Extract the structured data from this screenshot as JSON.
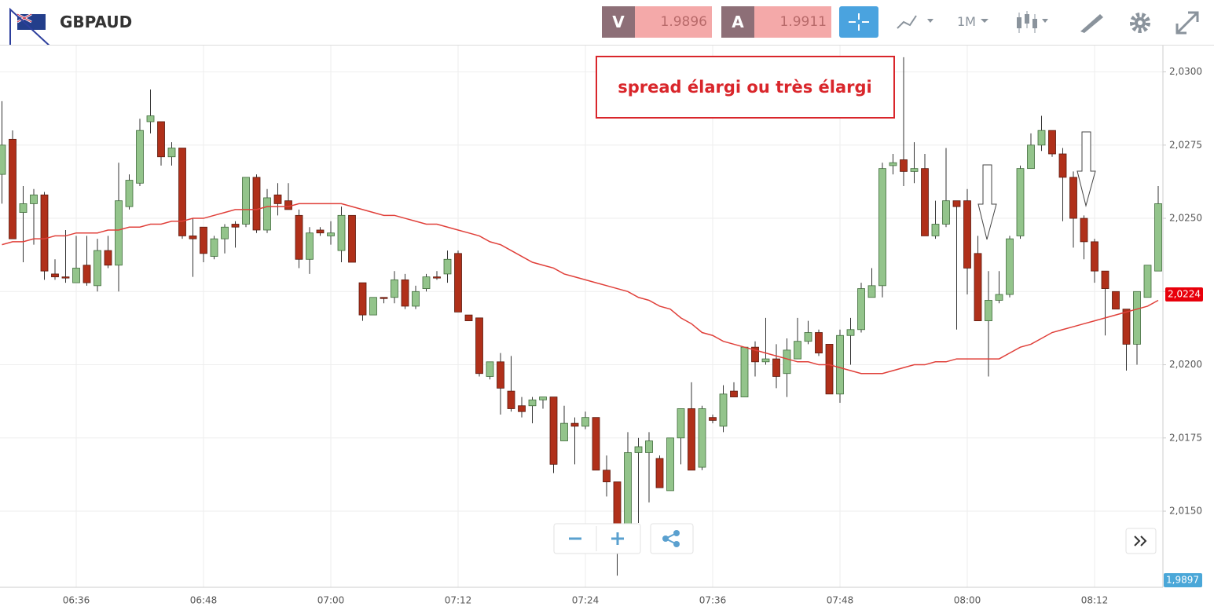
{
  "toolbar": {
    "symbol": "GBPAUD",
    "sell_label": "V",
    "sell_price": "1.9896",
    "buy_label": "A",
    "buy_price": "1.9911",
    "timeframe": "1M"
  },
  "chart_data": {
    "type": "candlestick",
    "annotation": "spread élargi ou très élargi",
    "categories": [
      null,
      null,
      null,
      null,
      null,
      null,
      null,
      "06:36",
      null,
      null,
      null,
      null,
      null,
      null,
      null,
      null,
      null,
      null,
      null,
      "06:48",
      null,
      null,
      null,
      null,
      null,
      null,
      null,
      null,
      null,
      null,
      null,
      "07:00",
      null,
      null,
      null,
      null,
      null,
      null,
      null,
      null,
      null,
      null,
      null,
      "07:12",
      null,
      null,
      null,
      null,
      null,
      null,
      null,
      null,
      null,
      null,
      null,
      "07:24",
      null,
      null,
      null,
      null,
      null,
      null,
      null,
      null,
      null,
      null,
      null,
      "07:36",
      null,
      null,
      null,
      null,
      null,
      null,
      null,
      null,
      null,
      null,
      null,
      "07:48",
      null,
      null,
      null,
      null,
      null,
      null,
      null,
      null,
      null,
      null,
      null,
      "08:00",
      null,
      null,
      null,
      null,
      null,
      null,
      null,
      null,
      null,
      null,
      null,
      "08:12",
      null,
      null,
      null,
      null,
      null,
      null
    ],
    "open": [
      2.0265,
      2.0277,
      2.0252,
      2.0255,
      2.0258,
      2.0231,
      2.023,
      2.0228,
      2.0234,
      2.0227,
      2.0239,
      2.0234,
      2.0254,
      2.0262,
      2.0283,
      2.0283,
      2.0271,
      2.0274,
      2.0244,
      2.0247,
      2.0237,
      2.0243,
      2.0248,
      2.0248,
      2.0264,
      2.0246,
      2.0258,
      2.0256,
      2.0251,
      2.0236,
      2.0246,
      2.0244,
      2.0239,
      2.0251,
      2.0228,
      2.0217,
      2.0223,
      2.0223,
      2.0229,
      2.022,
      2.0226,
      2.023,
      2.0231,
      2.0238,
      2.0217,
      2.0216,
      2.0196,
      2.0201,
      2.0191,
      2.0186,
      2.0186,
      2.0188,
      2.0189,
      2.0174,
      2.018,
      2.0179,
      2.0182,
      2.0164,
      2.016,
      2.0145,
      2.017,
      2.017,
      2.0168,
      2.0157,
      2.0175,
      2.0185,
      2.0165,
      2.0182,
      2.0179,
      2.0191,
      2.0189,
      2.0206,
      2.0201,
      2.0202,
      2.0197,
      2.0202,
      2.0208,
      2.0211,
      2.0207,
      2.019,
      2.021,
      2.0212,
      2.0223,
      2.0227,
      2.0268,
      2.027,
      2.0266,
      2.0267,
      2.0244,
      2.0248,
      2.0256,
      2.0256,
      2.0238,
      2.0215,
      2.0222,
      2.0224,
      2.0244,
      2.0267,
      2.0275,
      2.028,
      2.0272,
      2.0264,
      2.025,
      2.0242,
      2.0232,
      2.0225,
      2.0219,
      2.0207,
      2.0223,
      2.0232
    ],
    "high": [
      2.029,
      2.028,
      2.0261,
      2.026,
      2.0259,
      2.0236,
      2.0246,
      2.0244,
      2.0244,
      2.0243,
      2.0244,
      2.0269,
      2.0265,
      2.0284,
      2.0294,
      2.0283,
      2.0276,
      2.0274,
      2.025,
      2.0247,
      2.0244,
      2.0248,
      2.0249,
      2.0264,
      2.0265,
      2.026,
      2.0262,
      2.0262,
      2.0253,
      2.0247,
      2.0247,
      2.0249,
      2.0254,
      2.0251,
      2.0228,
      2.0223,
      2.0223,
      2.0232,
      2.0231,
      2.0227,
      2.0231,
      2.0232,
      2.0239,
      2.0239,
      2.0217,
      2.0216,
      2.0201,
      2.0204,
      2.0203,
      2.0189,
      2.0189,
      2.0189,
      2.0189,
      2.0186,
      2.0182,
      2.0184,
      2.0182,
      2.0169,
      2.016,
      2.0177,
      2.0175,
      2.0177,
      2.0169,
      2.0175,
      2.0185,
      2.0194,
      2.0186,
      2.0183,
      2.0193,
      2.0194,
      2.0206,
      2.0208,
      2.0216,
      2.0207,
      2.0209,
      2.0216,
      2.0215,
      2.0212,
      2.0207,
      2.0212,
      2.0216,
      2.0228,
      2.0233,
      2.0269,
      2.0272,
      2.0305,
      2.0276,
      2.0272,
      2.0256,
      2.0274,
      2.0256,
      2.026,
      2.0244,
      2.0232,
      2.0232,
      2.0244,
      2.0268,
      2.0279,
      2.0285,
      2.028,
      2.0274,
      2.0266,
      2.0251,
      2.0243,
      2.0232,
      2.0225,
      2.0219,
      2.0225,
      2.0234,
      2.0261
    ],
    "low": [
      2.0255,
      2.0243,
      2.0235,
      2.0241,
      2.0229,
      2.0229,
      2.0228,
      2.0228,
      2.0227,
      2.0225,
      2.0233,
      2.0225,
      2.0253,
      2.0261,
      2.0279,
      2.0268,
      2.0268,
      2.0243,
      2.023,
      2.0235,
      2.0236,
      2.0238,
      2.024,
      2.0247,
      2.0245,
      2.0245,
      2.0251,
      2.0253,
      2.0233,
      2.0231,
      2.0244,
      2.0241,
      2.0235,
      2.0235,
      2.0215,
      2.0217,
      2.0221,
      2.0221,
      2.0219,
      2.0219,
      2.0225,
      2.0229,
      2.0228,
      2.0218,
      2.0215,
      2.0196,
      2.0195,
      2.0183,
      2.0184,
      2.0182,
      2.018,
      2.0185,
      2.0163,
      2.0174,
      2.0166,
      2.0178,
      2.0164,
      2.0155,
      2.0128,
      2.0143,
      2.0146,
      2.0153,
      2.0158,
      2.0157,
      2.0166,
      2.0164,
      2.0164,
      2.018,
      2.0177,
      2.0189,
      2.0189,
      2.0196,
      2.02,
      2.0192,
      2.0189,
      2.0202,
      2.0207,
      2.0203,
      2.019,
      2.0187,
      2.02,
      2.0211,
      2.0223,
      2.0223,
      2.0265,
      2.0261,
      2.0262,
      2.0244,
      2.0243,
      2.0247,
      2.0212,
      2.0224,
      2.0215,
      2.0196,
      2.0221,
      2.0223,
      2.0243,
      2.0267,
      2.0273,
      2.0271,
      2.0249,
      2.024,
      2.0236,
      2.0228,
      2.021,
      2.0219,
      2.0198,
      2.02,
      2.0223,
      2.0232
    ],
    "close": [
      2.0275,
      2.0243,
      2.0255,
      2.0258,
      2.0232,
      2.023,
      2.023,
      2.0233,
      2.0228,
      2.0239,
      2.0234,
      2.0256,
      2.0263,
      2.028,
      2.0285,
      2.0271,
      2.0274,
      2.0244,
      2.0243,
      2.0238,
      2.0243,
      2.0247,
      2.0247,
      2.0264,
      2.0246,
      2.0257,
      2.0255,
      2.0253,
      2.0236,
      2.0245,
      2.0245,
      2.0245,
      2.0251,
      2.0235,
      2.0217,
      2.0223,
      2.0223,
      2.0229,
      2.022,
      2.0225,
      2.023,
      2.023,
      2.0236,
      2.0218,
      2.0215,
      2.0197,
      2.0201,
      2.0192,
      2.0185,
      2.0184,
      2.0188,
      2.0189,
      2.0166,
      2.018,
      2.0179,
      2.0182,
      2.0164,
      2.016,
      2.0138,
      2.017,
      2.0172,
      2.0174,
      2.0158,
      2.0175,
      2.0185,
      2.0164,
      2.0185,
      2.0181,
      2.019,
      2.0189,
      2.0206,
      2.0201,
      2.0202,
      2.0196,
      2.0205,
      2.0208,
      2.0211,
      2.0204,
      2.019,
      2.021,
      2.0212,
      2.0226,
      2.0227,
      2.0267,
      2.0269,
      2.0266,
      2.0267,
      2.0244,
      2.0248,
      2.0256,
      2.0254,
      2.0233,
      2.0215,
      2.0222,
      2.0224,
      2.0243,
      2.0267,
      2.0275,
      2.028,
      2.0272,
      2.0264,
      2.025,
      2.0242,
      2.0232,
      2.0226,
      2.0219,
      2.0207,
      2.0225,
      2.0234,
      2.0255
    ],
    "up_color": "#93c48b",
    "down_color": "#b0301a",
    "ma": {
      "color": "#e0403a",
      "values": [
        2.0241,
        2.0242,
        2.0242,
        2.0243,
        2.0243,
        2.0244,
        2.0244,
        2.0245,
        2.0245,
        2.0245,
        2.0246,
        2.0246,
        2.0247,
        2.0247,
        2.0248,
        2.0248,
        2.0249,
        2.0249,
        2.025,
        2.025,
        2.0251,
        2.0252,
        2.0253,
        2.0253,
        2.0253,
        2.0254,
        2.0254,
        2.0254,
        2.0255,
        2.0255,
        2.0255,
        2.0255,
        2.0255,
        2.0254,
        2.0253,
        2.0252,
        2.0251,
        2.0251,
        2.025,
        2.0249,
        2.0248,
        2.0248,
        2.0247,
        2.0246,
        2.0245,
        2.0244,
        2.0242,
        2.0241,
        2.0239,
        2.0237,
        2.0235,
        2.0234,
        2.0233,
        2.0231,
        2.023,
        2.0229,
        2.0228,
        2.0227,
        2.0226,
        2.0225,
        2.0223,
        2.0222,
        2.022,
        2.0219,
        2.0216,
        2.0214,
        2.0211,
        2.021,
        2.0208,
        2.0207,
        2.0206,
        2.0205,
        2.0204,
        2.0203,
        2.0202,
        2.0201,
        2.0201,
        2.02,
        2.02,
        2.0199,
        2.0198,
        2.0197,
        2.0197,
        2.0197,
        2.0198,
        2.0199,
        2.02,
        2.02,
        2.0201,
        2.0201,
        2.0202,
        2.0202,
        2.0202,
        2.0202,
        2.0202,
        2.0204,
        2.0206,
        2.0207,
        2.0209,
        2.0211,
        2.0212,
        2.0213,
        2.0214,
        2.0215,
        2.0216,
        2.0217,
        2.0218,
        2.0219,
        2.022,
        2.0222
      ]
    },
    "ylim": [
      2.0124,
      2.0309
    ],
    "yticks": [
      {
        "value": 2.015,
        "label": "2,0150"
      },
      {
        "value": 2.0175,
        "label": "2,0175"
      },
      {
        "value": 2.02,
        "label": "2,0200"
      },
      {
        "value": 2.0225,
        "label": "2,0225"
      },
      {
        "value": 2.025,
        "label": "2,0250"
      },
      {
        "value": 2.0275,
        "label": "2,0275"
      },
      {
        "value": 2.03,
        "label": "2,0300"
      }
    ],
    "price_tag": {
      "value": 2.0224,
      "label": "2,0224"
    },
    "bottom_tag": "1,9897",
    "grid": true
  }
}
